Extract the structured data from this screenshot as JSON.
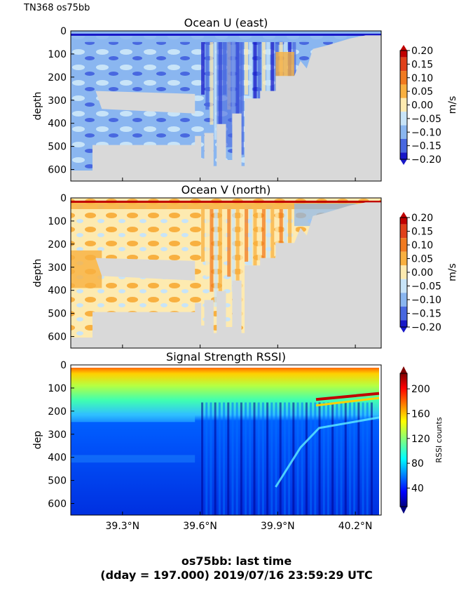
{
  "header": {
    "run_label": "TN368 os75bb"
  },
  "footer": {
    "line1": "os75bb: last time",
    "line2": "(dday = 197.000) 2019/07/16 23:59:29 UTC"
  },
  "chart_data": [
    {
      "type": "heatmap",
      "title": "Ocean U (east)",
      "ylabel": "depth",
      "yticks": [
        "0",
        "100",
        "200",
        "300",
        "400",
        "500",
        "600"
      ],
      "ylim": [
        650,
        0
      ],
      "xlim": [
        39.1,
        40.3
      ],
      "colorbar": {
        "label": "m/s",
        "ticks": [
          "0.20",
          "0.15",
          "0.10",
          "0.05",
          "0.00",
          "−0.05",
          "−0.10",
          "−0.15",
          "−0.20"
        ],
        "range": [
          -0.2,
          0.2
        ],
        "colors": [
          "#c00000",
          "#e0401a",
          "#f07a20",
          "#f8b040",
          "#fdeab0",
          "#c8e4f8",
          "#8ab6f0",
          "#4868e0",
          "#1818c8"
        ]
      },
      "dominant_value": -0.08
    },
    {
      "type": "heatmap",
      "title": "Ocean V (north)",
      "ylabel": "depth",
      "yticks": [
        "0",
        "100",
        "200",
        "300",
        "400",
        "500",
        "600"
      ],
      "ylim": [
        650,
        0
      ],
      "xlim": [
        39.1,
        40.3
      ],
      "colorbar": {
        "label": "m/s",
        "ticks": [
          "0.20",
          "0.15",
          "0.10",
          "0.05",
          "0.00",
          "−0.05",
          "−0.10",
          "−0.15",
          "−0.20"
        ],
        "range": [
          -0.2,
          0.2
        ],
        "colors": [
          "#c00000",
          "#e0401a",
          "#f07a20",
          "#f8b040",
          "#fdeab0",
          "#c8e4f8",
          "#8ab6f0",
          "#4868e0",
          "#1818c8"
        ]
      },
      "dominant_value": 0.03
    },
    {
      "type": "heatmap",
      "title": "Signal Strength RSSI)",
      "ylabel": "dep",
      "yticks": [
        "0",
        "100",
        "200",
        "300",
        "400",
        "500",
        "600"
      ],
      "xticks": [
        "39.3°N",
        "39.6°N",
        "39.9°N",
        "40.2°N"
      ],
      "xtick_values": [
        39.3,
        39.6,
        39.9,
        40.2
      ],
      "ylim": [
        650,
        0
      ],
      "xlim": [
        39.1,
        40.3
      ],
      "colorbar": {
        "label": "RSSI counts",
        "ticks": [
          "200",
          "160",
          "120",
          "80",
          "40"
        ],
        "range": [
          10,
          225
        ]
      },
      "depth_profile": [
        {
          "depth": 20,
          "rssi": 190
        },
        {
          "depth": 60,
          "rssi": 165
        },
        {
          "depth": 120,
          "rssi": 105
        },
        {
          "depth": 200,
          "rssi": 85
        },
        {
          "depth": 250,
          "rssi": 45
        },
        {
          "depth": 400,
          "rssi": 35
        },
        {
          "depth": 600,
          "rssi": 30
        }
      ]
    }
  ]
}
